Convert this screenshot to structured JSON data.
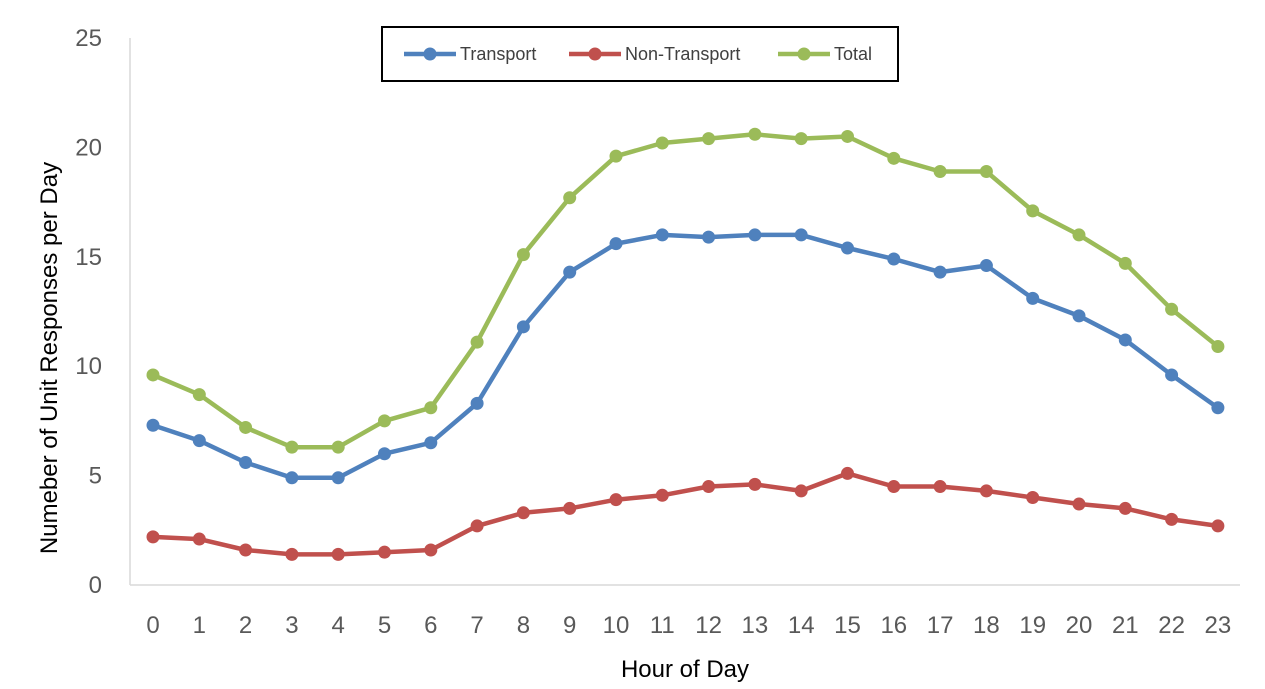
{
  "chart_data": {
    "type": "line",
    "title": "",
    "xlabel": "Hour of Day",
    "ylabel": "Numeber of Unit Responses per Day",
    "x": [
      0,
      1,
      2,
      3,
      4,
      5,
      6,
      7,
      8,
      9,
      10,
      11,
      12,
      13,
      14,
      15,
      16,
      17,
      18,
      19,
      20,
      21,
      22,
      23
    ],
    "ylim": [
      0,
      25
    ],
    "yticks": [
      0,
      5,
      10,
      15,
      20,
      25
    ],
    "grid": false,
    "legend_position": "top-center",
    "series": [
      {
        "name": "Transport",
        "color": "#4f81bd",
        "values": [
          7.3,
          6.6,
          5.6,
          4.9,
          4.9,
          6.0,
          6.5,
          8.3,
          11.8,
          14.3,
          15.6,
          16.0,
          15.9,
          16.0,
          16.0,
          15.4,
          14.9,
          14.3,
          14.6,
          13.1,
          12.3,
          11.2,
          9.6,
          8.1
        ]
      },
      {
        "name": "Non-Transport",
        "color": "#c0504d",
        "values": [
          2.2,
          2.1,
          1.6,
          1.4,
          1.4,
          1.5,
          1.6,
          2.7,
          3.3,
          3.5,
          3.9,
          4.1,
          4.5,
          4.6,
          4.3,
          5.1,
          4.5,
          4.5,
          4.3,
          4.0,
          3.7,
          3.5,
          3.0,
          2.7
        ]
      },
      {
        "name": "Total",
        "color": "#9bbb59",
        "values": [
          9.6,
          8.7,
          7.2,
          6.3,
          6.3,
          7.5,
          8.1,
          11.1,
          15.1,
          17.7,
          19.6,
          20.2,
          20.4,
          20.6,
          20.4,
          20.5,
          19.5,
          18.9,
          18.9,
          17.1,
          16.0,
          14.7,
          12.6,
          10.9
        ]
      }
    ]
  }
}
